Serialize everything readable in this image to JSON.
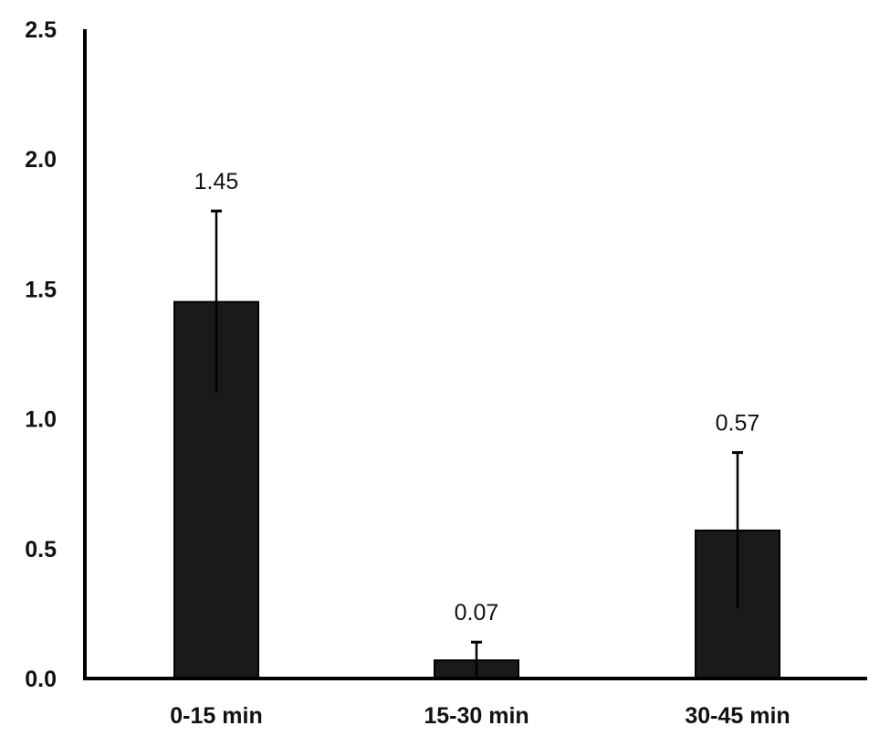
{
  "chart_data": {
    "type": "bar",
    "title": "",
    "xlabel": "",
    "ylabel": "",
    "categories": [
      "0-15 min",
      "15-30 min",
      "30-45 min"
    ],
    "values": [
      1.45,
      0.07,
      0.57
    ],
    "data_labels": [
      "1.45",
      "0.07",
      "0.57"
    ],
    "error_bars": {
      "upper": [
        1.8,
        0.14,
        0.87
      ],
      "lower": [
        1.1,
        0.0,
        0.27
      ]
    },
    "ylim": [
      0,
      2.5
    ],
    "yticks": [
      0,
      0.5,
      1.0,
      1.5,
      2.0,
      2.5
    ],
    "ytick_labels": [
      "0.0",
      "0.5",
      "1.0",
      "1.5",
      "2.0",
      "2.5"
    ],
    "grid": false,
    "legend": "none",
    "bar_color": "#1a1a1a"
  }
}
